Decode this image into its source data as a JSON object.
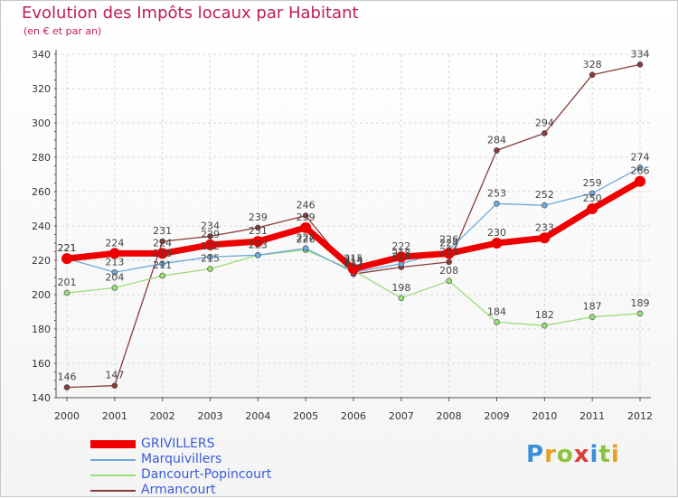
{
  "title": "Evolution des Impôts locaux par Habitant",
  "subtitle": "(en € et par an)",
  "logo": {
    "text": "Proxiti"
  },
  "colors": {
    "title": "#c21d4f",
    "grid": "#d8d8d8",
    "axis": "#555555",
    "tick_text": "#333333"
  },
  "chart_data": {
    "type": "line",
    "title": "Evolution des Impôts locaux par Habitant",
    "subtitle": "(en € et par an)",
    "xlabel": "",
    "ylabel": "",
    "x": [
      "2000",
      "2001",
      "2002",
      "2003",
      "2004",
      "2005",
      "2006",
      "2007",
      "2008",
      "2009",
      "2010",
      "2011",
      "2012"
    ],
    "ylim": [
      140,
      340
    ],
    "yticks": [
      140,
      160,
      180,
      200,
      220,
      240,
      260,
      280,
      300,
      320,
      340
    ],
    "grid": true,
    "legend_position": "bottom-left",
    "series": [
      {
        "name": "GRIVILLERS",
        "color": "#ee0000",
        "emphasis": true,
        "values": [
          221,
          224,
          224,
          229,
          231,
          239,
          215,
          222,
          224,
          230,
          233,
          250,
          266
        ],
        "labels": [
          "221",
          "224",
          "224",
          "229",
          "231",
          "239",
          "215",
          "222",
          "224",
          "230",
          "233",
          "250",
          "266"
        ]
      },
      {
        "name": "Marquivillers",
        "color": "#6fa8dc",
        "emphasis": false,
        "values": [
          221,
          213,
          218,
          222,
          223,
          227,
          213,
          218,
          226,
          253,
          252,
          259,
          274
        ],
        "labels": [
          "221",
          "213",
          "218",
          "222",
          "223",
          "227",
          "213",
          "218",
          "226",
          "253",
          "252",
          "259",
          "274"
        ]
      },
      {
        "name": "Dancourt-Popincourt",
        "color": "#99dd77",
        "emphasis": false,
        "values": [
          201,
          204,
          211,
          215,
          223,
          226,
          214,
          198,
          208,
          184,
          182,
          187,
          189
        ],
        "labels": [
          "201",
          "204",
          "211",
          "215",
          "223",
          "226",
          "214",
          "198",
          "208",
          "184",
          "182",
          "187",
          "189"
        ]
      },
      {
        "name": "Armancourt",
        "color": "#8b3a3a",
        "emphasis": false,
        "values": [
          146,
          147,
          231,
          234,
          239,
          246,
          212,
          216,
          219,
          284,
          294,
          328,
          334
        ],
        "labels": [
          "146",
          "147",
          "231",
          "234",
          "239",
          "246",
          "212",
          "216",
          "219",
          "284",
          "294",
          "328",
          "334"
        ]
      }
    ]
  }
}
